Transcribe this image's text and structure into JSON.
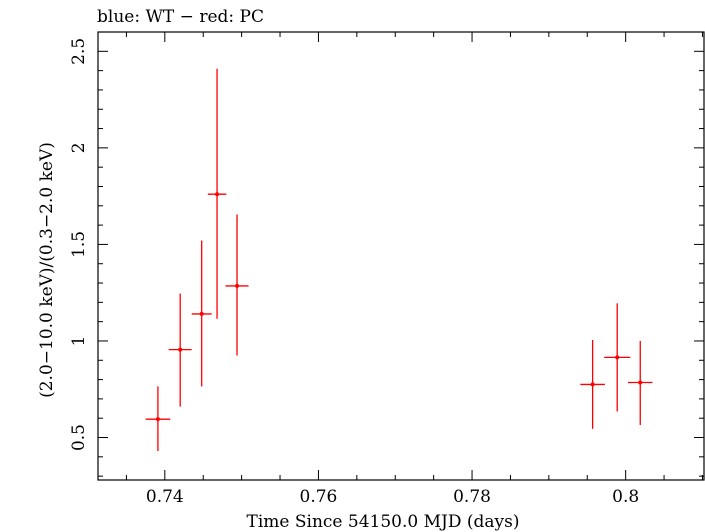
{
  "chart_data": {
    "type": "scatter",
    "title": "blue: WT − red: PC",
    "xlabel": "Time Since 54150.0 MJD (days)",
    "ylabel": "(2.0−10.0 keV)/(0.3−2.0 keV)",
    "xlim": [
      0.7313,
      0.8102
    ],
    "ylim": [
      0.28,
      2.6
    ],
    "x_ticks": [
      0.74,
      0.76,
      0.78,
      0.8
    ],
    "x_tick_labels": [
      "0.74",
      "0.76",
      "0.78",
      "0.8"
    ],
    "y_ticks": [
      0.5,
      1,
      1.5,
      2,
      2.5
    ],
    "y_tick_labels": [
      "0.5",
      "1",
      "1.5",
      "2",
      "2.5"
    ],
    "grid": false,
    "series": [
      {
        "color": "#ff0000",
        "points": [
          {
            "x": 0.7391,
            "y": 0.595,
            "xerr": 0.0016,
            "ylo": 0.43,
            "yhi": 0.765
          },
          {
            "x": 0.742,
            "y": 0.955,
            "xerr": 0.0015,
            "ylo": 0.66,
            "yhi": 1.245
          },
          {
            "x": 0.7448,
            "y": 1.14,
            "xerr": 0.0013,
            "ylo": 0.765,
            "yhi": 1.52
          },
          {
            "x": 0.7468,
            "y": 1.76,
            "xerr": 0.0012,
            "ylo": 1.115,
            "yhi": 2.41
          },
          {
            "x": 0.7494,
            "y": 1.285,
            "xerr": 0.0015,
            "ylo": 0.925,
            "yhi": 1.655
          },
          {
            "x": 0.7957,
            "y": 0.775,
            "xerr": 0.0016,
            "ylo": 0.545,
            "yhi": 1.005
          },
          {
            "x": 0.7989,
            "y": 0.915,
            "xerr": 0.0017,
            "ylo": 0.635,
            "yhi": 1.195
          },
          {
            "x": 0.8019,
            "y": 0.785,
            "xerr": 0.0016,
            "ylo": 0.565,
            "yhi": 1.0
          }
        ]
      }
    ]
  }
}
